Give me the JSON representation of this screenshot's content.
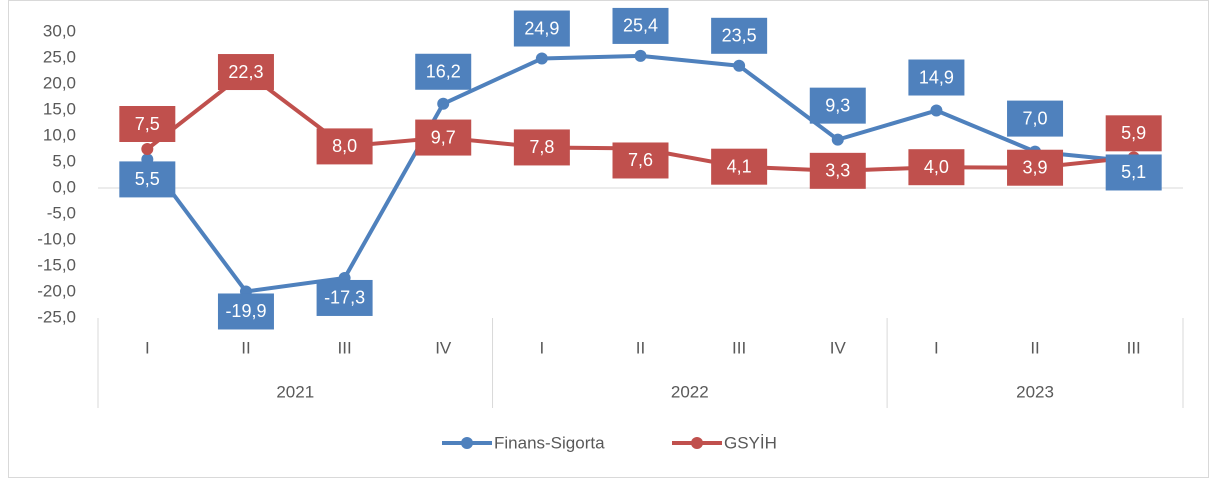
{
  "chart_data": {
    "type": "line",
    "category_groups": [
      {
        "name": "2021",
        "categories": [
          "I",
          "II",
          "III",
          "IV"
        ]
      },
      {
        "name": "2022",
        "categories": [
          "I",
          "II",
          "III",
          "IV"
        ]
      },
      {
        "name": "2023",
        "categories": [
          "I",
          "II",
          "III"
        ]
      }
    ],
    "series": [
      {
        "name": "Finans-Sigorta",
        "color": "#4f81bd",
        "values": [
          5.5,
          -19.9,
          -17.3,
          16.2,
          24.9,
          25.4,
          23.5,
          9.3,
          14.9,
          7.0,
          5.1
        ],
        "value_labels": [
          "5,5",
          "-19,9",
          "-17,3",
          "16,2",
          "24,9",
          "25,4",
          "23,5",
          "9,3",
          "14,9",
          "7,0",
          "5,1"
        ]
      },
      {
        "name": "GSYİH",
        "color": "#c0504d",
        "values": [
          7.5,
          22.3,
          8.0,
          9.7,
          7.8,
          7.6,
          4.1,
          3.3,
          4.0,
          3.9,
          5.9
        ],
        "value_labels": [
          "7,5",
          "22,3",
          "8,0",
          "9,7",
          "7,8",
          "7,6",
          "4,1",
          "3,3",
          "4,0",
          "3,9",
          "5,9"
        ]
      }
    ],
    "ylim": [
      -25,
      30
    ],
    "yticks": [
      {
        "value": 30,
        "label": "30,0"
      },
      {
        "value": 25,
        "label": "25,0"
      },
      {
        "value": 20,
        "label": "20,0"
      },
      {
        "value": 15,
        "label": "15,0"
      },
      {
        "value": 10,
        "label": "10,0"
      },
      {
        "value": 5,
        "label": "5,0"
      },
      {
        "value": 0,
        "label": "0,0"
      },
      {
        "value": -5,
        "label": "-5,0"
      },
      {
        "value": -10,
        "label": "-10,0"
      },
      {
        "value": -15,
        "label": "-15,0"
      },
      {
        "value": -20,
        "label": "-20,0"
      },
      {
        "value": -25,
        "label": "-25,0"
      }
    ],
    "legend": "bottom"
  }
}
